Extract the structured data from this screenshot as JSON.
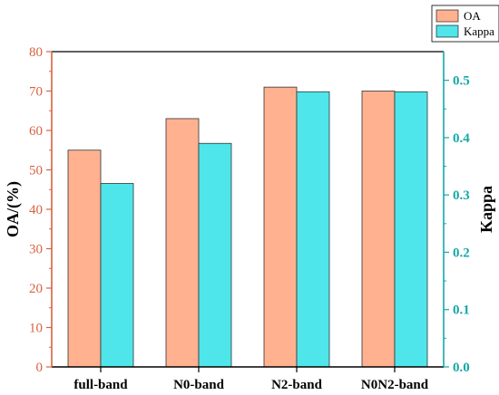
{
  "chart_data": {
    "type": "bar",
    "categories": [
      "full-band",
      "N0-band",
      "N2-band",
      "N0N2-band"
    ],
    "series": [
      {
        "name": "OA",
        "axis": "left",
        "values": [
          55,
          63,
          71,
          70
        ],
        "color": "#FFB190"
      },
      {
        "name": "Kappa",
        "axis": "right",
        "values": [
          0.32,
          0.39,
          0.48,
          0.48
        ],
        "color": "#4EE6EA"
      }
    ],
    "ylabel_left": "OA/(%)",
    "ylabel_right": "Kappa",
    "ylim_left": [
      0,
      80
    ],
    "ylim_right": [
      0,
      0.55
    ],
    "yticks_left": [
      "0",
      "10",
      "20",
      "30",
      "40",
      "50",
      "60",
      "70",
      "80"
    ],
    "yticks_right": [
      "0.0",
      "0.1",
      "0.2",
      "0.3",
      "0.4",
      "0.5"
    ],
    "left_axis_color": "#D7623F",
    "right_axis_color": "#16A7A8",
    "grid": false,
    "legend_position": "top-right"
  }
}
